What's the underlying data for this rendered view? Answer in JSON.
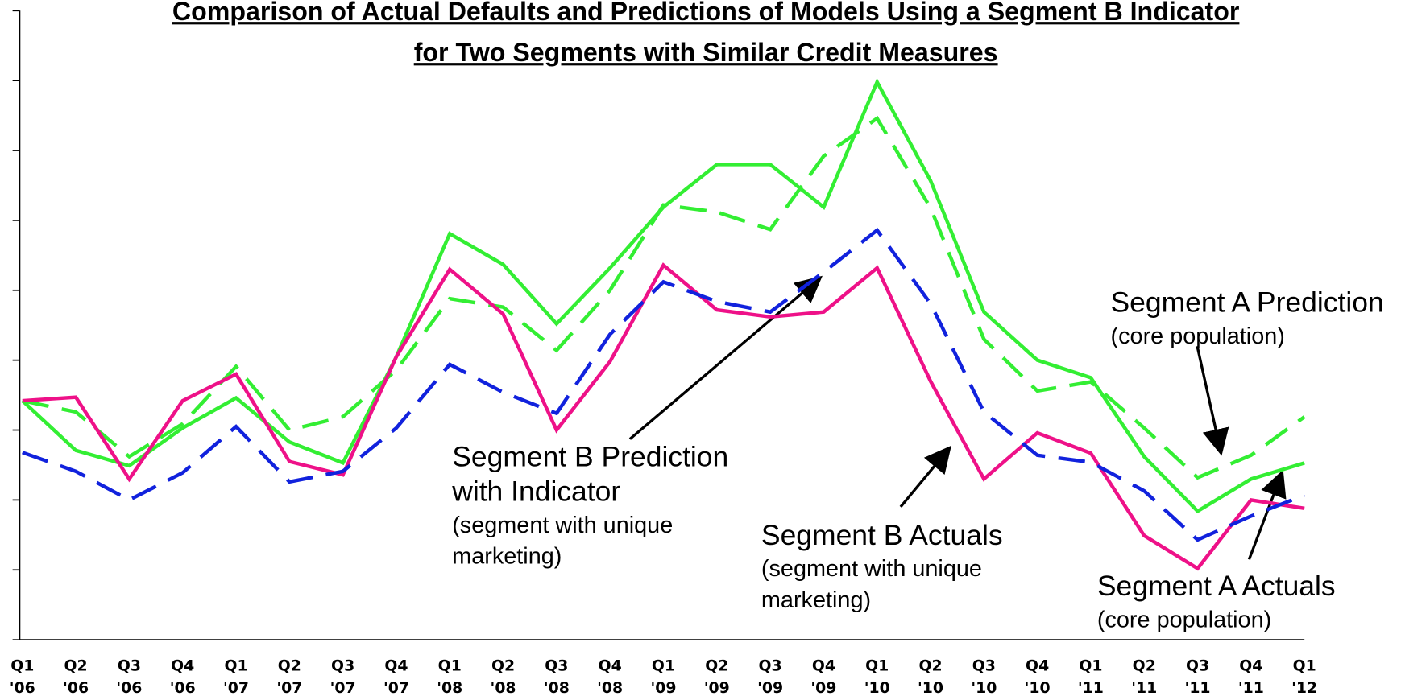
{
  "chart_data": {
    "type": "line",
    "title_lines": [
      "Comparison of Actual Defaults and Predictions of Models Using a Segment B Indicator",
      "for Two Segments with Similar Credit Measures"
    ],
    "categories": [
      "Q1 '06",
      "Q2 '06",
      "Q3 '06",
      "Q4 '06",
      "Q1 '07",
      "Q2 '07",
      "Q3 '07",
      "Q4 '07",
      "Q1 '08",
      "Q2 '08",
      "Q3 '08",
      "Q4 '08",
      "Q1 '09",
      "Q2 '09",
      "Q3 '09",
      "Q4 '09",
      "Q1 '10",
      "Q2 '10",
      "Q3 '10",
      "Q4 '10",
      "Q1 '11",
      "Q2 '11",
      "Q3 '11",
      "Q4 '11",
      "Q1 '12"
    ],
    "ylim": [
      0,
      9
    ],
    "yticks": [
      0,
      1,
      2,
      3,
      4,
      5,
      6,
      7,
      8,
      9
    ],
    "series": [
      {
        "name": "Segment A Actuals",
        "color": "#33ee33",
        "dash": false,
        "values": [
          3.42,
          2.71,
          2.49,
          3.03,
          3.46,
          2.83,
          2.53,
          4.05,
          5.81,
          5.37,
          4.52,
          5.32,
          6.19,
          6.8,
          6.8,
          6.19,
          7.98,
          6.57,
          4.69,
          4.0,
          3.75,
          2.62,
          1.84,
          2.3,
          2.53
        ]
      },
      {
        "name": "Segment A Prediction",
        "color": "#33ee33",
        "dash": true,
        "values": [
          3.42,
          3.26,
          2.62,
          3.09,
          3.91,
          3.0,
          3.19,
          3.86,
          4.88,
          4.76,
          4.14,
          5.0,
          6.22,
          6.12,
          5.87,
          6.92,
          7.46,
          6.18,
          4.3,
          3.56,
          3.69,
          3.03,
          2.32,
          2.64,
          3.19
        ]
      },
      {
        "name": "Segment B Actuals",
        "color": "#ee1188",
        "dash": false,
        "values": [
          3.42,
          3.47,
          2.3,
          3.42,
          3.8,
          2.55,
          2.36,
          4.05,
          5.3,
          4.66,
          3.0,
          3.98,
          5.36,
          4.72,
          4.62,
          4.69,
          5.32,
          3.7,
          2.3,
          2.96,
          2.67,
          1.49,
          1.02,
          2.0,
          1.88
        ]
      },
      {
        "name": "Segment B Prediction with Indicator",
        "color": "#1122dd",
        "dash": true,
        "values": [
          2.68,
          2.41,
          2.0,
          2.39,
          3.05,
          2.26,
          2.41,
          3.03,
          3.94,
          3.54,
          3.24,
          4.37,
          5.12,
          4.84,
          4.69,
          5.26,
          5.86,
          4.81,
          3.26,
          2.64,
          2.54,
          2.13,
          1.43,
          1.77,
          2.07
        ]
      }
    ],
    "annotations": [
      {
        "lines": [
          "Segment B Prediction",
          "with Indicator"
        ],
        "sub_lines": [
          "(segment with unique",
          "marketing)"
        ]
      },
      {
        "lines": [
          "Segment B Actuals"
        ],
        "sub_lines": [
          "(segment with unique",
          "marketing)"
        ]
      },
      {
        "lines": [
          "Segment A Prediction"
        ],
        "sub_lines": [
          "(core population)"
        ]
      },
      {
        "lines": [
          "Segment A Actuals"
        ],
        "sub_lines": [
          "(core population)"
        ]
      }
    ]
  }
}
